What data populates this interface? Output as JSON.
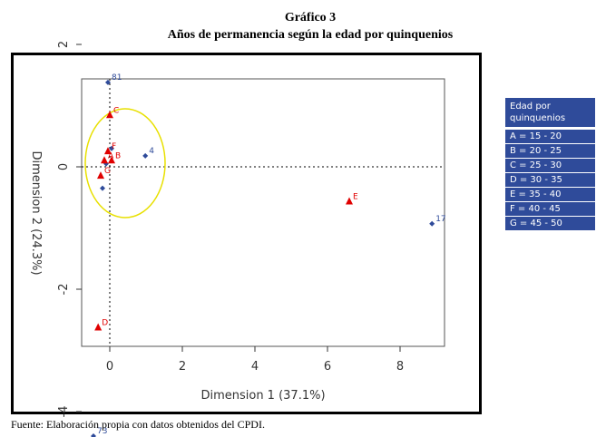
{
  "title": "Gráfico 3",
  "subtitle": "Años de permanencia según la edad por quinquenios",
  "source": "Fuente: Elaboración propia con datos obtenidos del CPDI.",
  "legend": {
    "title": "Edad por quinquenios",
    "items": [
      "A = 15 - 20",
      "B = 20 - 25",
      "C = 25 - 30",
      "D = 30 - 35",
      "E = 35 - 40",
      "F = 40 - 45",
      "G = 45 - 50"
    ]
  },
  "colors": {
    "rows": "#2f4b9a",
    "cols": "#e00000",
    "ellipse": "#e8e000"
  },
  "chart_data": {
    "type": "scatter",
    "xlabel": "Dimension 1 (37.1%)",
    "ylabel": "Dimension 2 (24.3%)",
    "xlim": [
      -0.8,
      9.2
    ],
    "ylim": [
      -5.9,
      2.9
    ],
    "xticks": [
      0,
      2,
      4,
      6,
      8
    ],
    "yticks": [
      2,
      0,
      -2,
      -4
    ],
    "series": [
      {
        "name": "rows",
        "marker": "diamond",
        "points": [
          {
            "x": -0.05,
            "y": 1.38,
            "label": "81"
          },
          {
            "x": 0.98,
            "y": 0.18,
            "label": "4"
          },
          {
            "x": 8.88,
            "y": -0.93,
            "label": "17"
          },
          {
            "x": -0.45,
            "y": -4.4,
            "label": "73"
          },
          {
            "x": -0.2,
            "y": -0.35,
            "label": ""
          },
          {
            "x": 0.05,
            "y": 0.3,
            "label": ""
          },
          {
            "x": -0.1,
            "y": 0.05,
            "label": ""
          }
        ]
      },
      {
        "name": "cols",
        "marker": "triangle",
        "points": [
          {
            "x": 0,
            "y": 0.84,
            "label": "C"
          },
          {
            "x": 6.6,
            "y": -0.57,
            "label": "E"
          },
          {
            "x": -0.32,
            "y": -2.63,
            "label": "D"
          },
          {
            "x": -0.15,
            "y": 0.1,
            "label": "A"
          },
          {
            "x": 0.05,
            "y": 0.1,
            "label": "B"
          },
          {
            "x": -0.05,
            "y": 0.25,
            "label": "F"
          },
          {
            "x": -0.25,
            "y": -0.15,
            "label": "G"
          }
        ]
      }
    ]
  }
}
